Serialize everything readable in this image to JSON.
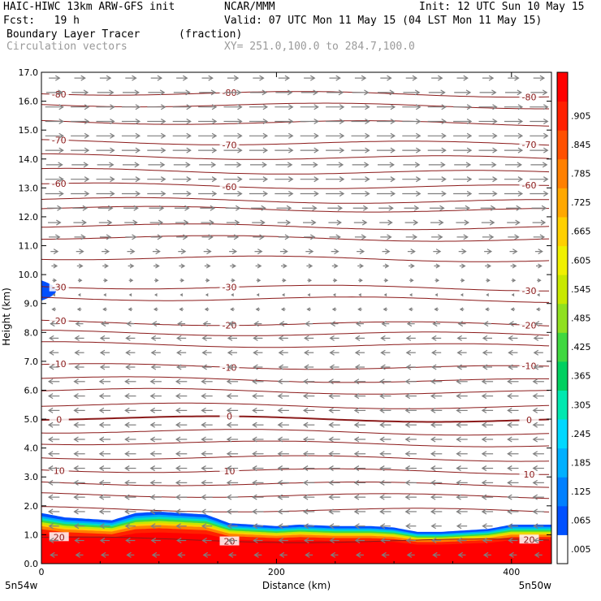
{
  "header": {
    "title": "HAIC-HIWC 13km ARW-GFS init",
    "source": "NCAR/MMM",
    "init": "Init: 12 UTC Sun 10 May 15",
    "fcst": "Fcst:   19 h",
    "valid": "Valid: 07 UTC Mon 11 May 15 (04 LST Mon 11 May 15)",
    "field": "Boundary Layer Tracer",
    "units": "(fraction)",
    "vectors": "Circulation vectors",
    "xy": "XY= 251.0,100.0 to 284.7,100.0"
  },
  "chart_data": {
    "type": "heatmap",
    "title": "Boundary Layer Tracer",
    "units": "(fraction)",
    "xlabel": "Distance (km)",
    "ylabel": "Height (km)",
    "xlim": [
      0,
      434
    ],
    "ylim": [
      0,
      17
    ],
    "x_ticks": [
      "0",
      "200",
      "400"
    ],
    "y_ticks": [
      "0.0",
      "1.0",
      "2.0",
      "3.0",
      "4.0",
      "5.0",
      "6.0",
      "7.0",
      "8.0",
      "9.0",
      "10.0",
      "11.0",
      "12.0",
      "13.0",
      "14.0",
      "15.0",
      "16.0",
      "17.0"
    ],
    "x_endpoint_labels": [
      "5n54w",
      "5n50w"
    ],
    "colorbar": {
      "labels": [
        ".005",
        ".065",
        ".125",
        ".185",
        ".245",
        ".305",
        ".365",
        ".425",
        ".485",
        ".545",
        ".605",
        ".665",
        ".725",
        ".785",
        ".845",
        ".905"
      ],
      "colors": [
        "#ffffff",
        "#0050ff",
        "#0080ff",
        "#00b0ff",
        "#00d8ff",
        "#00e8b0",
        "#00d060",
        "#40d840",
        "#90e020",
        "#c8e800",
        "#f0f000",
        "#ffd000",
        "#ffa800",
        "#ff8000",
        "#ff5000",
        "#ff2000",
        "#ff0000"
      ]
    },
    "tracer_profile": {
      "x": [
        0,
        20,
        40,
        60,
        80,
        100,
        120,
        140,
        160,
        180,
        200,
        220,
        250,
        280,
        300,
        320,
        340,
        360,
        380,
        400,
        420,
        434
      ],
      "top_height": [
        1.75,
        1.6,
        1.55,
        1.5,
        1.75,
        1.8,
        1.75,
        1.7,
        1.4,
        1.35,
        1.3,
        1.35,
        1.3,
        1.3,
        1.25,
        1.1,
        1.1,
        1.15,
        1.2,
        1.35,
        1.35,
        1.35
      ]
    },
    "upper_tracer_patch": {
      "x_range": [
        0,
        25
      ],
      "height_range": [
        9.1,
        9.8
      ]
    },
    "temperature_contours": {
      "units": "C",
      "levels": [
        {
          "value": -80,
          "height": 16.3,
          "label": "-80"
        },
        {
          "value": -70,
          "height": 14.6,
          "label": "-70"
        },
        {
          "value": -60,
          "height": 13.1,
          "label": "-60"
        },
        {
          "value": -30,
          "height": 9.6,
          "label": "-30"
        },
        {
          "value": -20,
          "height": 8.35,
          "label": "-20"
        },
        {
          "value": -10,
          "height": 6.85,
          "label": "-10"
        },
        {
          "value": 0,
          "height": 5.05,
          "label": "0"
        },
        {
          "value": 10,
          "height": 3.25,
          "label": "10"
        },
        {
          "value": 20,
          "height": 0.85,
          "label": "20"
        }
      ],
      "unlabeled_heights": [
        15.9,
        15.3,
        14.1,
        13.6,
        12.6,
        12.3,
        11.7,
        11.3,
        10.6,
        9.2,
        8.0,
        7.6,
        6.4,
        6.0,
        5.5,
        4.6,
        4.2,
        3.7,
        2.8,
        2.4,
        1.9
      ]
    },
    "circulation_vectors": {
      "rows": [
        {
          "height": 16.8,
          "u": 0.6
        },
        {
          "height": 16.3,
          "u": 0.9
        },
        {
          "height": 15.8,
          "u": 1.0
        },
        {
          "height": 15.3,
          "u": 1.0
        },
        {
          "height": 14.8,
          "u": 1.0
        },
        {
          "height": 14.3,
          "u": 1.0
        },
        {
          "height": 13.8,
          "u": 0.9
        },
        {
          "height": 13.3,
          "u": 1.0
        },
        {
          "height": 12.8,
          "u": 1.0
        },
        {
          "height": 12.3,
          "u": 0.8
        },
        {
          "height": 11.8,
          "u": 0.7
        },
        {
          "height": 11.3,
          "u": 0.6
        },
        {
          "height": 10.8,
          "u": 0.4
        },
        {
          "height": 10.3,
          "u": 0.3
        },
        {
          "height": 9.8,
          "u": 0.2
        },
        {
          "height": 9.3,
          "u": -0.1
        },
        {
          "height": 8.8,
          "u": -0.2
        },
        {
          "height": 8.3,
          "u": -0.4
        },
        {
          "height": 7.8,
          "u": -0.5
        },
        {
          "height": 7.3,
          "u": -0.5
        },
        {
          "height": 6.8,
          "u": -0.5
        },
        {
          "height": 6.3,
          "u": -0.6
        },
        {
          "height": 5.8,
          "u": -0.6
        },
        {
          "height": 5.3,
          "u": -0.6
        },
        {
          "height": 4.8,
          "u": -0.6
        },
        {
          "height": 4.3,
          "u": -0.6
        },
        {
          "height": 3.8,
          "u": -0.6
        },
        {
          "height": 3.3,
          "u": -0.6
        },
        {
          "height": 2.8,
          "u": -0.6
        },
        {
          "height": 2.3,
          "u": -0.6
        },
        {
          "height": 1.8,
          "u": -0.6
        },
        {
          "height": 1.3,
          "u": -0.55
        },
        {
          "height": 0.8,
          "u": -0.5
        },
        {
          "height": 0.3,
          "u": -0.4
        }
      ],
      "columns": 20
    }
  }
}
